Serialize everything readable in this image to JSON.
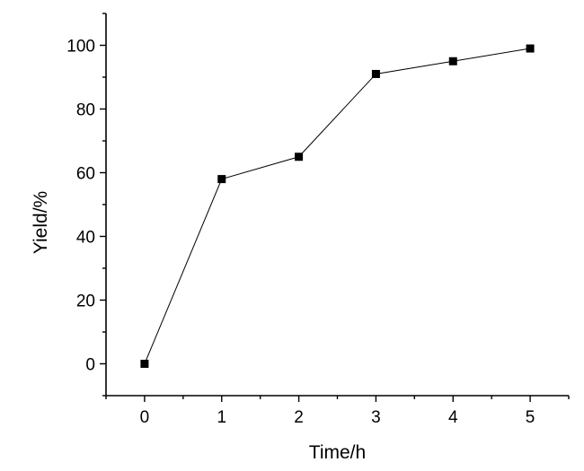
{
  "chart_data": {
    "type": "line",
    "title": "",
    "xlabel": "Time/h",
    "ylabel": "Yield/%",
    "x": [
      0,
      1,
      2,
      3,
      4,
      5
    ],
    "series": [
      {
        "values": [
          0,
          58,
          65,
          91,
          95,
          99
        ],
        "marker": "square",
        "color": "#000000"
      }
    ],
    "xlim": [
      -0.5,
      5.5
    ],
    "ylim": [
      -10,
      110
    ],
    "xticks": [
      0,
      1,
      2,
      3,
      4,
      5
    ],
    "xtick_labels": [
      "0",
      "1",
      "2",
      "3",
      "4",
      "5"
    ],
    "yticks": [
      0,
      20,
      40,
      60,
      80,
      100
    ],
    "ytick_labels": [
      "0",
      "20",
      "40",
      "60",
      "80",
      "100"
    ],
    "grid": false,
    "legend": "none"
  }
}
